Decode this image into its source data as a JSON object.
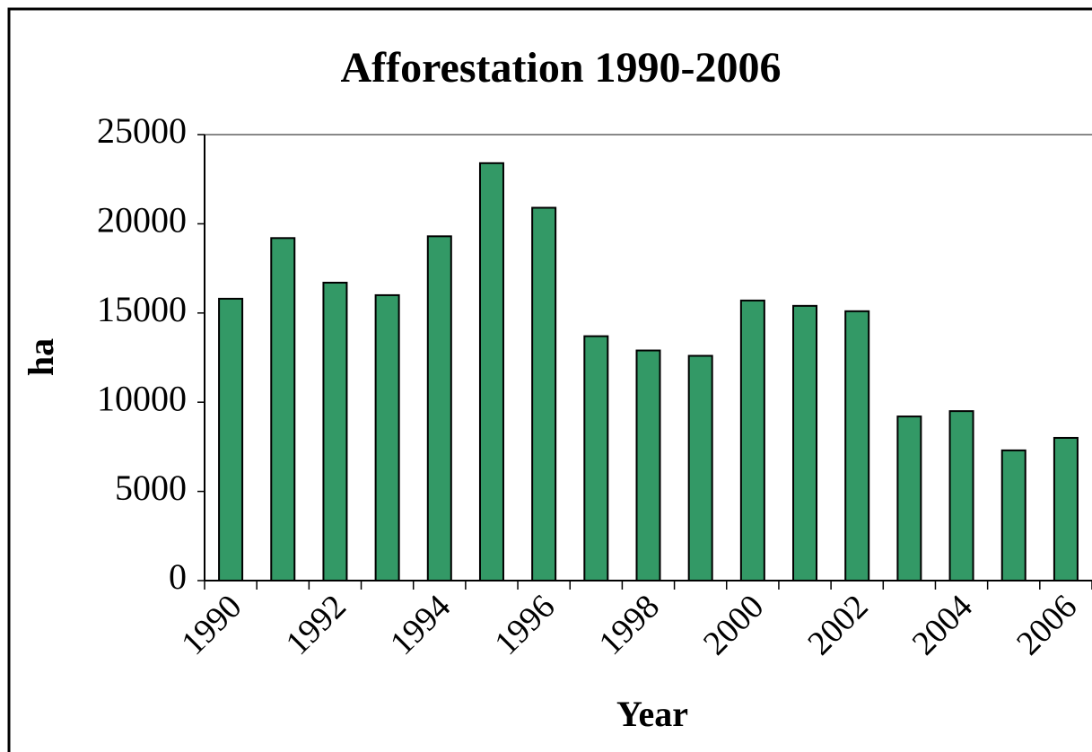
{
  "chart_data": {
    "type": "bar",
    "title": "Afforestation 1990-2006",
    "x_label": "Year",
    "y_label": "ha",
    "categories": [
      "1990",
      null,
      "1992",
      null,
      "1994",
      null,
      "1996",
      null,
      "1998",
      null,
      "2000",
      null,
      "2002",
      null,
      "2004",
      null,
      "2006"
    ],
    "values": [
      15800,
      19200,
      16700,
      16000,
      19300,
      23400,
      20900,
      13700,
      12900,
      12600,
      15700,
      15400,
      15100,
      9200,
      9500,
      7300,
      8000
    ],
    "color": "#339966",
    "ylim": [
      0,
      25000
    ],
    "yticks": [
      0,
      5000,
      10000,
      15000,
      20000,
      25000
    ],
    "grid": false
  }
}
